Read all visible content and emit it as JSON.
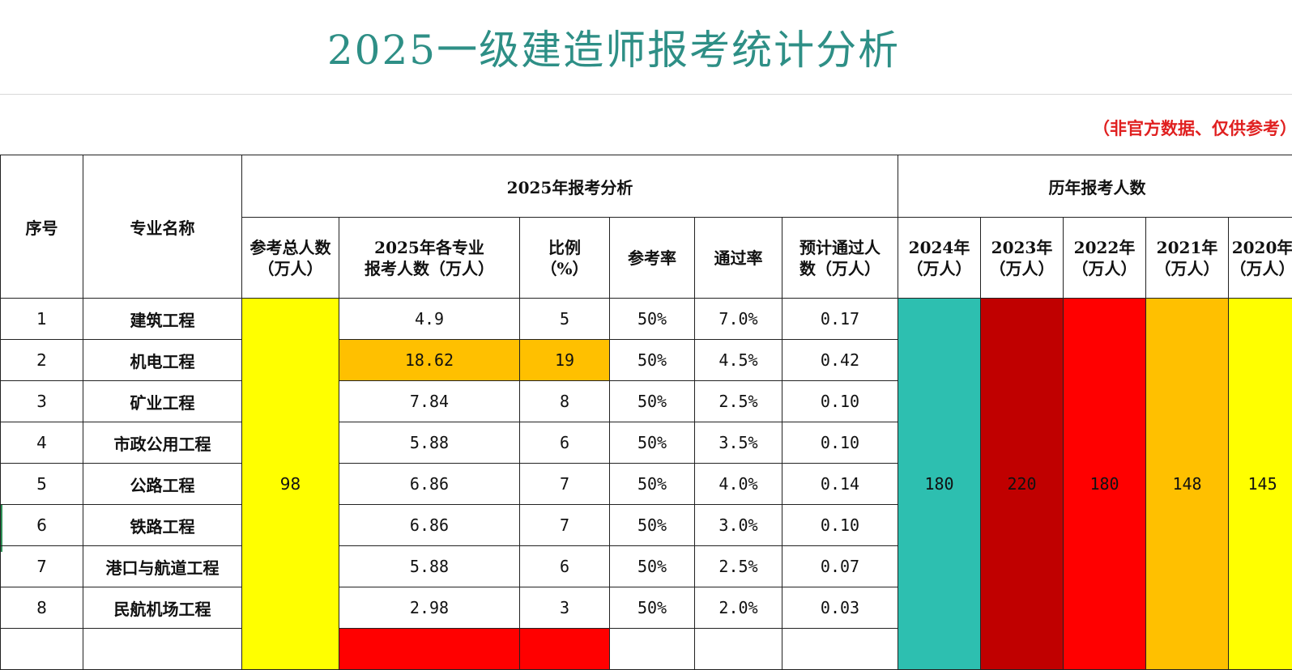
{
  "title": "2025一级建造师报考统计分析",
  "note": "（非官方数据、仅供参考）",
  "headers": {
    "index": "序号",
    "major": "专业名称",
    "group_2025": "2025年报考分析",
    "group_history": "历年报考人数",
    "total_line1": "参考总人数",
    "total_line2": "（万人）",
    "applicants_line1": "2025年各专业",
    "applicants_line2": "报考人数（万人）",
    "ratio_line1": "比例",
    "ratio_line2": "（%）",
    "exam_rate": "参考率",
    "pass_rate": "通过率",
    "expected_line1": "预计通过人",
    "expected_line2": "数（万人）",
    "y2024_line1": "2024年",
    "y2023_line1": "2023年",
    "y2022_line1": "2022年",
    "y2021_line1": "2021年",
    "y2020_line1": "2020年",
    "unit": "（万人）"
  },
  "total_applicants": "98",
  "rows": [
    {
      "index": "1",
      "major": "建筑工程",
      "applicants": "4.9",
      "ratio": "5",
      "exam_rate": "50%",
      "pass_rate": "7.0%",
      "expected": "0.17"
    },
    {
      "index": "2",
      "major": "机电工程",
      "applicants": "18.62",
      "ratio": "19",
      "exam_rate": "50%",
      "pass_rate": "4.5%",
      "expected": "0.42"
    },
    {
      "index": "3",
      "major": "矿业工程",
      "applicants": "7.84",
      "ratio": "8",
      "exam_rate": "50%",
      "pass_rate": "2.5%",
      "expected": "0.10"
    },
    {
      "index": "4",
      "major": "市政公用工程",
      "applicants": "5.88",
      "ratio": "6",
      "exam_rate": "50%",
      "pass_rate": "3.5%",
      "expected": "0.10"
    },
    {
      "index": "5",
      "major": "公路工程",
      "applicants": "6.86",
      "ratio": "7",
      "exam_rate": "50%",
      "pass_rate": "4.0%",
      "expected": "0.14"
    },
    {
      "index": "6",
      "major": "铁路工程",
      "applicants": "6.86",
      "ratio": "7",
      "exam_rate": "50%",
      "pass_rate": "3.0%",
      "expected": "0.10"
    },
    {
      "index": "7",
      "major": "港口与航道工程",
      "applicants": "5.88",
      "ratio": "6",
      "exam_rate": "50%",
      "pass_rate": "2.5%",
      "expected": "0.07"
    },
    {
      "index": "8",
      "major": "民航机场工程",
      "applicants": "2.98",
      "ratio": "3",
      "exam_rate": "50%",
      "pass_rate": "2.0%",
      "expected": "0.03"
    }
  ],
  "history": {
    "y2024": "180",
    "y2023": "220",
    "y2022": "180",
    "y2021": "148",
    "y2020": "145"
  },
  "colors": {
    "title": "#2e8f86",
    "accent_red": "#e11b1b",
    "yellow": "#ffff00",
    "orange": "#ffc000",
    "red": "#ff0000",
    "dark_red": "#c00000",
    "teal": "#2dbfb0"
  }
}
